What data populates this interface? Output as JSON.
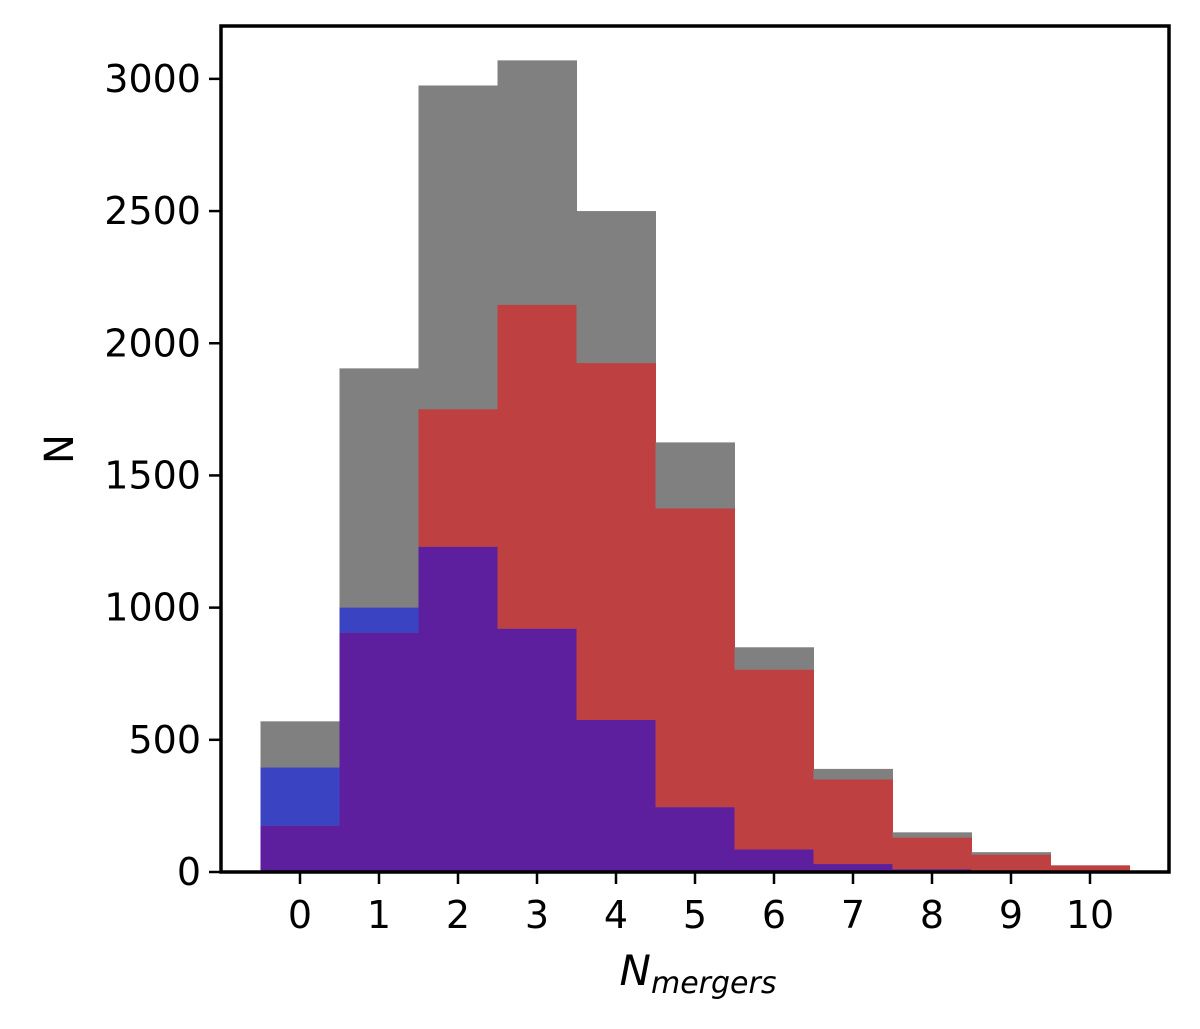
{
  "chart_data": {
    "type": "bar",
    "style": "overlaid histogram",
    "categories": [
      "0",
      "1",
      "2",
      "3",
      "4",
      "5",
      "6",
      "7",
      "8",
      "9",
      "10"
    ],
    "series": [
      {
        "color": "#808080",
        "values": [
          570,
          1905,
          2975,
          3070,
          2500,
          1625,
          850,
          390,
          150,
          75,
          25
        ]
      },
      {
        "color": "#bf4040",
        "values": [
          175,
          905,
          1750,
          2145,
          1925,
          1375,
          765,
          350,
          130,
          65,
          25
        ]
      },
      {
        "color": "#3a43c2",
        "values": [
          395,
          1000,
          1230,
          920,
          575,
          245,
          85,
          30,
          10,
          0,
          0
        ]
      }
    ],
    "overlap_color": "#5e1f9e",
    "xlabel": "N",
    "xlabel_subscript": "mergers",
    "ylabel": "N",
    "yticks": [
      "0",
      "500",
      "1000",
      "1500",
      "2000",
      "2500",
      "3000"
    ],
    "ylim": [
      0,
      3200
    ],
    "xlim": [
      -1,
      11
    ],
    "grid": false
  }
}
